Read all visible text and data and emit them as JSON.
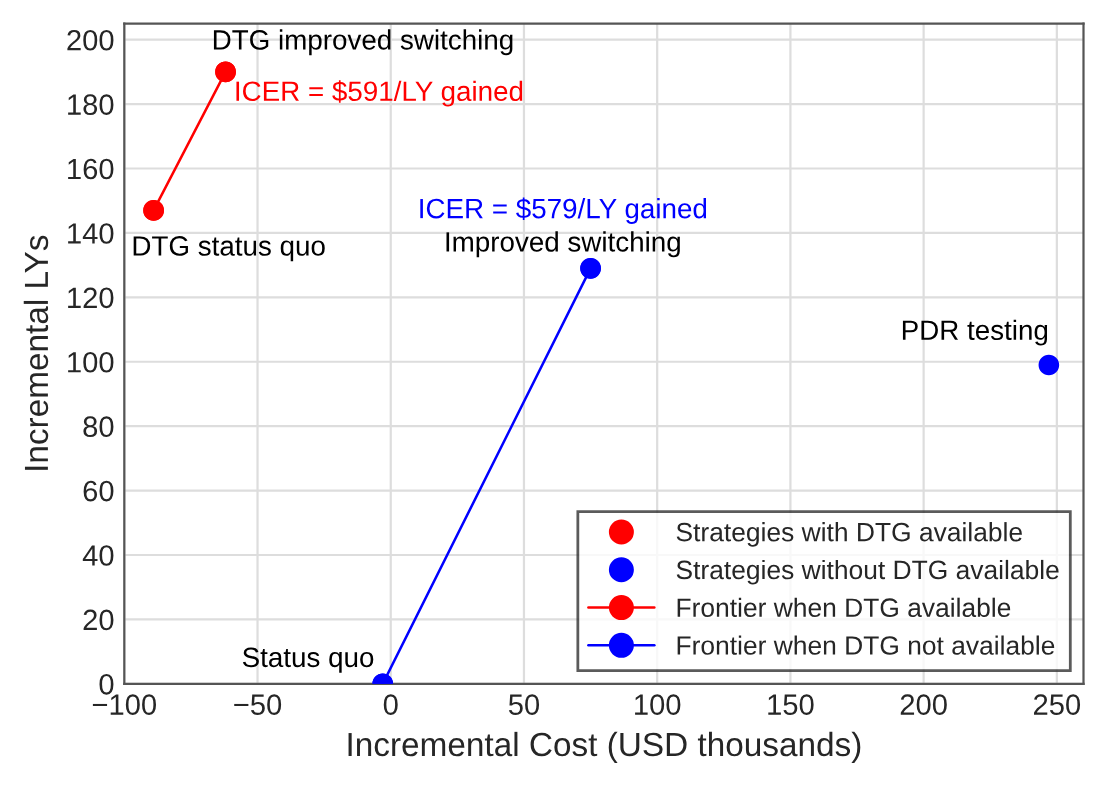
{
  "chart_data": {
    "type": "scatter",
    "xlabel": "Incremental Cost (USD thousands)",
    "ylabel": "Incremental LYs",
    "xlim": [
      -100,
      260
    ],
    "ylim": [
      0,
      205
    ],
    "xticks": [
      -100,
      -50,
      0,
      50,
      100,
      150,
      200,
      250
    ],
    "yticks": [
      0,
      20,
      40,
      60,
      80,
      100,
      120,
      140,
      160,
      180,
      200
    ],
    "grid": true,
    "legend": "bottom right",
    "marker": "circle",
    "series": [
      {
        "name": "Strategies with DTG available",
        "color": "#ff0000",
        "x": [
          -89,
          -62
        ],
        "values": [
          147,
          190
        ]
      },
      {
        "name": "Strategies without DTG available",
        "color": "#0000ff",
        "x": [
          -3,
          75,
          247
        ],
        "values": [
          0,
          129,
          99
        ]
      },
      {
        "name": "Frontier when DTG available",
        "type": "line",
        "color": "#ff0000",
        "x": [
          -89,
          -62
        ],
        "values": [
          147,
          190
        ]
      },
      {
        "name": "Frontier when DTG not available",
        "type": "line",
        "color": "#0000ff",
        "x": [
          -3,
          75
        ],
        "values": [
          0,
          129
        ]
      }
    ],
    "annotations": [
      {
        "text": "DTG improved switching",
        "x": -62,
        "y": 190
      },
      {
        "text": "ICER = $591/LY gained",
        "x": -62,
        "y": 190
      },
      {
        "text": "DTG status quo",
        "x": -89,
        "y": 147
      },
      {
        "text": "ICER = $579/LY gained",
        "x": 75,
        "y": 129
      },
      {
        "text": "Improved switching",
        "x": 75,
        "y": 129
      },
      {
        "text": "PDR testing",
        "x": 247,
        "y": 99
      },
      {
        "text": "Status quo",
        "x": -3,
        "y": 0
      }
    ]
  }
}
